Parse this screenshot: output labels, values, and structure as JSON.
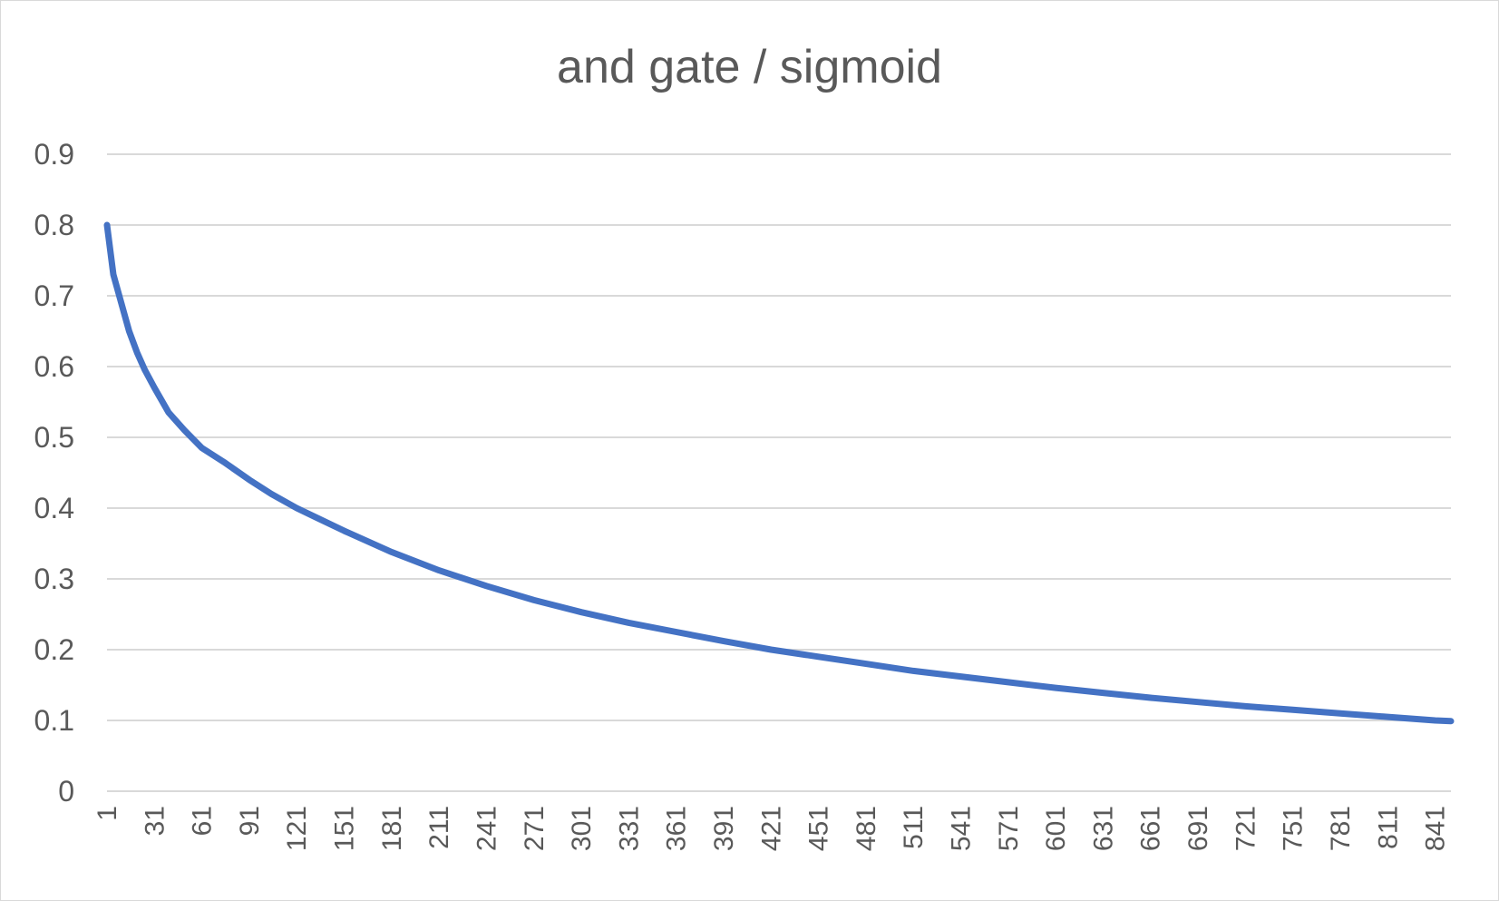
{
  "chart_data": {
    "type": "line",
    "title": "and gate / sigmoid",
    "xlabel": "",
    "ylabel": "",
    "x_range": [
      1,
      851
    ],
    "x_tick_labels": [
      "1",
      "31",
      "61",
      "91",
      "121",
      "151",
      "181",
      "211",
      "241",
      "271",
      "301",
      "331",
      "361",
      "391",
      "421",
      "451",
      "481",
      "511",
      "541",
      "571",
      "601",
      "631",
      "661",
      "691",
      "721",
      "751",
      "781",
      "811",
      "841"
    ],
    "y_tick_labels": [
      "0",
      "0.1",
      "0.2",
      "0.3",
      "0.4",
      "0.5",
      "0.6",
      "0.7",
      "0.8",
      "0.9"
    ],
    "ylim": [
      0,
      0.9
    ],
    "grid": true,
    "legend": "none",
    "series": [
      {
        "color": "#4472c4",
        "x": [
          1,
          5,
          10,
          15,
          20,
          25,
          31,
          40,
          50,
          61,
          75,
          91,
          105,
          121,
          135,
          151,
          181,
          211,
          241,
          271,
          301,
          331,
          361,
          391,
          421,
          451,
          481,
          511,
          541,
          571,
          601,
          631,
          661,
          691,
          721,
          751,
          781,
          811,
          841,
          851
        ],
        "values": [
          0.8,
          0.73,
          0.69,
          0.65,
          0.62,
          0.595,
          0.57,
          0.535,
          0.51,
          0.485,
          0.465,
          0.44,
          0.42,
          0.4,
          0.385,
          0.368,
          0.338,
          0.312,
          0.29,
          0.27,
          0.253,
          0.238,
          0.225,
          0.212,
          0.2,
          0.19,
          0.18,
          0.17,
          0.162,
          0.154,
          0.146,
          0.139,
          0.132,
          0.126,
          0.12,
          0.115,
          0.11,
          0.105,
          0.1,
          0.099
        ]
      }
    ]
  }
}
